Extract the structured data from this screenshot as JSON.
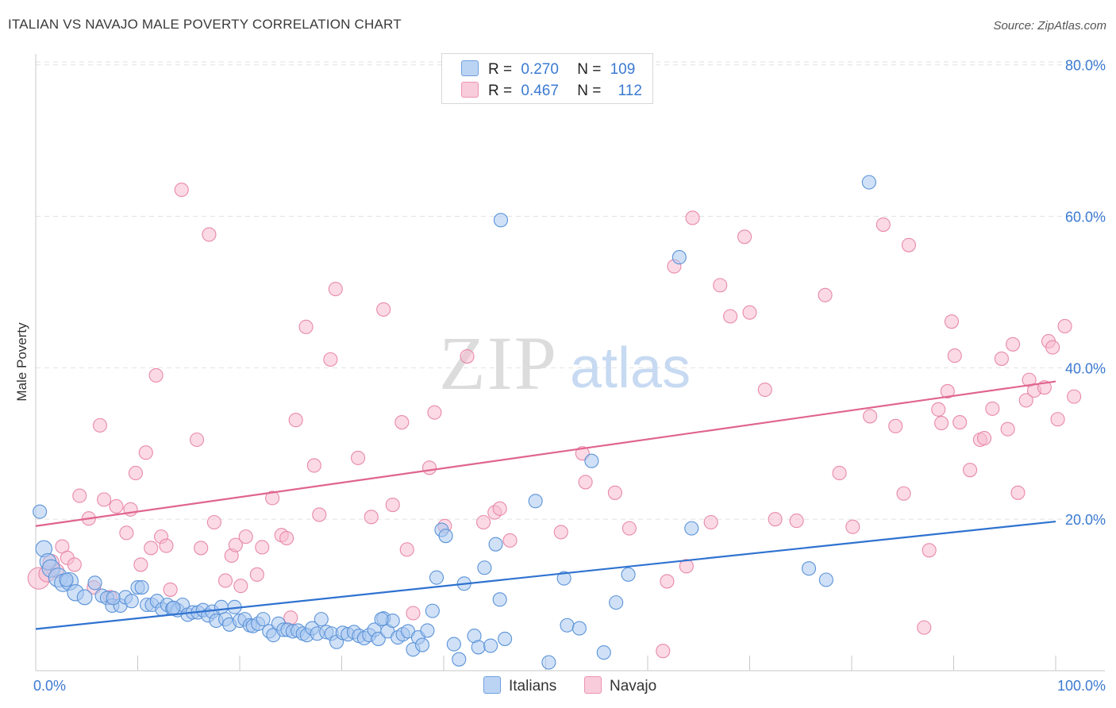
{
  "title": "ITALIAN VS NAVAJO MALE POVERTY CORRELATION CHART",
  "source": "Source: ZipAtlas.com",
  "watermark": {
    "zip": "ZIP",
    "atlas": "atlas"
  },
  "legend": {
    "rows": [
      {
        "r_label": "R =",
        "r_value": "0.270",
        "n_label": "N =",
        "n_value": "109"
      },
      {
        "r_label": "R =",
        "r_value": "0.467",
        "n_label": "N =",
        "n_value": "112"
      }
    ],
    "bottom": [
      "Italians",
      "Navajo"
    ]
  },
  "colors": {
    "italians_fill": "#a9c8f0",
    "italians_stroke": "#5b93d8",
    "italians_line": "#2f72d0",
    "navajo_fill": "#f7bcd0",
    "navajo_stroke": "#e889a9",
    "navajo_line": "#e0648f",
    "tick_text": "#3b7ad1"
  },
  "chart_data": {
    "type": "scatter",
    "title": "ITALIAN VS NAVAJO MALE POVERTY CORRELATION CHART",
    "xlabel": "",
    "ylabel": "Male Poverty",
    "xlim": [
      0,
      100
    ],
    "ylim": [
      0,
      85
    ],
    "x_tick_labels": [
      "0.0%",
      "100.0%"
    ],
    "y_ticks": [
      20,
      40,
      60,
      80
    ],
    "y_tick_labels": [
      "20.0%",
      "40.0%",
      "60.0%",
      "80.0%"
    ],
    "grid": "horizontal dashed",
    "legend_position": "top-center",
    "series": [
      {
        "name": "Italians",
        "r": 0.27,
        "n": 109,
        "trend": {
          "x": [
            0,
            100
          ],
          "y": [
            5.5,
            19.7
          ]
        },
        "points": [
          [
            0.4,
            21.0,
            1
          ],
          [
            0.8,
            16.1,
            1.2
          ],
          [
            1.2,
            14.4,
            1.2
          ],
          [
            1.5,
            13.5,
            1.3
          ],
          [
            2.2,
            12.3,
            1.4
          ],
          [
            2.7,
            11.6,
            1.3
          ],
          [
            3.3,
            11.8,
            1.3
          ],
          [
            3.9,
            10.3,
            1.2
          ],
          [
            4.8,
            9.7,
            1.1
          ],
          [
            5.8,
            11.6,
            1
          ],
          [
            6.5,
            9.9,
            1
          ],
          [
            7.0,
            9.6,
            1
          ],
          [
            7.5,
            8.6,
            1
          ],
          [
            8.3,
            8.6,
            1
          ],
          [
            8.8,
            9.7,
            1
          ],
          [
            9.4,
            9.2,
            1
          ],
          [
            10.0,
            11.0,
            1
          ],
          [
            10.4,
            11.0,
            1
          ],
          [
            10.9,
            8.7,
            1
          ],
          [
            11.4,
            8.7,
            1
          ],
          [
            11.9,
            9.2,
            1
          ],
          [
            12.4,
            8.1,
            1
          ],
          [
            12.9,
            8.7,
            1
          ],
          [
            13.4,
            8.2,
            1
          ],
          [
            13.9,
            8.0,
            1
          ],
          [
            14.4,
            8.7,
            1
          ],
          [
            14.9,
            7.4,
            1
          ],
          [
            15.4,
            7.7,
            1
          ],
          [
            15.9,
            7.7,
            1
          ],
          [
            16.4,
            8.0,
            1
          ],
          [
            16.9,
            7.3,
            1
          ],
          [
            17.3,
            7.8,
            1
          ],
          [
            17.7,
            6.6,
            1
          ],
          [
            18.2,
            8.4,
            1
          ],
          [
            18.6,
            6.8,
            1
          ],
          [
            19.0,
            6.1,
            1
          ],
          [
            19.5,
            8.4,
            1
          ],
          [
            20.0,
            6.6,
            1
          ],
          [
            20.5,
            6.8,
            1
          ],
          [
            21.0,
            6.0,
            1
          ],
          [
            21.3,
            5.9,
            1
          ],
          [
            21.8,
            6.2,
            1
          ],
          [
            22.3,
            6.8,
            1
          ],
          [
            22.9,
            5.2,
            1
          ],
          [
            23.3,
            4.7,
            1
          ],
          [
            23.8,
            6.2,
            1
          ],
          [
            24.3,
            5.4,
            1
          ],
          [
            24.7,
            5.4,
            1
          ],
          [
            25.2,
            5.2,
            1
          ],
          [
            25.7,
            5.3,
            1
          ],
          [
            26.2,
            4.9,
            1
          ],
          [
            26.6,
            4.7,
            1
          ],
          [
            27.1,
            5.6,
            1
          ],
          [
            27.6,
            4.9,
            1
          ],
          [
            28.0,
            6.8,
            1
          ],
          [
            28.5,
            5.1,
            1
          ],
          [
            29.0,
            4.9,
            1
          ],
          [
            29.5,
            3.8,
            1
          ],
          [
            30.1,
            5.0,
            1
          ],
          [
            30.6,
            4.8,
            1
          ],
          [
            31.2,
            5.1,
            1
          ],
          [
            31.7,
            4.6,
            1
          ],
          [
            32.2,
            4.3,
            1
          ],
          [
            32.7,
            4.7,
            1
          ],
          [
            33.2,
            5.4,
            1
          ],
          [
            33.6,
            4.2,
            1
          ],
          [
            34.1,
            6.9,
            1
          ],
          [
            34.5,
            5.2,
            1
          ],
          [
            35.0,
            6.6,
            1
          ],
          [
            35.5,
            4.4,
            1
          ],
          [
            36.0,
            4.8,
            1
          ],
          [
            36.5,
            5.2,
            1
          ],
          [
            37.0,
            2.8,
            1
          ],
          [
            37.5,
            4.4,
            1
          ],
          [
            37.9,
            3.4,
            1
          ],
          [
            38.4,
            5.3,
            1
          ],
          [
            38.9,
            7.9,
            1
          ],
          [
            39.3,
            12.3,
            1
          ],
          [
            39.8,
            18.6,
            1
          ],
          [
            40.2,
            17.8,
            1
          ],
          [
            41.0,
            3.5,
            1
          ],
          [
            41.5,
            1.5,
            1
          ],
          [
            42.0,
            11.5,
            1
          ],
          [
            43.0,
            4.6,
            1
          ],
          [
            43.4,
            3.1,
            1
          ],
          [
            44.0,
            13.6,
            1
          ],
          [
            44.6,
            3.3,
            1
          ],
          [
            45.1,
            16.7,
            1
          ],
          [
            45.5,
            9.4,
            1
          ],
          [
            46.0,
            4.2,
            1
          ],
          [
            49.0,
            22.4,
            1
          ],
          [
            50.3,
            1.1,
            1
          ],
          [
            51.8,
            12.2,
            1
          ],
          [
            52.1,
            6.0,
            1
          ],
          [
            53.3,
            5.6,
            1
          ],
          [
            54.5,
            27.7,
            1
          ],
          [
            55.7,
            2.4,
            1
          ],
          [
            56.9,
            9.0,
            1
          ],
          [
            58.1,
            12.7,
            1
          ],
          [
            63.1,
            54.6,
            1
          ],
          [
            64.3,
            18.8,
            1
          ],
          [
            75.8,
            13.5,
            1
          ],
          [
            77.5,
            12.0,
            1
          ],
          [
            81.7,
            64.5,
            1
          ],
          [
            45.6,
            59.5,
            1
          ],
          [
            13.5,
            8.3,
            1
          ],
          [
            33.9,
            6.8,
            1
          ],
          [
            3.0,
            12.0,
            1
          ],
          [
            7.6,
            9.6,
            1
          ]
        ]
      },
      {
        "name": "Navajo",
        "r": 0.467,
        "n": 112,
        "trend": {
          "x": [
            0,
            100
          ],
          "y": [
            19.1,
            38.2
          ]
        },
        "points": [
          [
            0.3,
            12.2,
            1.6
          ],
          [
            1.1,
            12.8,
            1.2
          ],
          [
            1.5,
            14.3,
            1.2
          ],
          [
            2.1,
            13.2,
            1
          ],
          [
            2.6,
            16.4,
            1
          ],
          [
            3.1,
            14.9,
            1
          ],
          [
            3.8,
            14.0,
            1
          ],
          [
            4.3,
            23.1,
            1
          ],
          [
            5.2,
            20.1,
            1
          ],
          [
            5.7,
            11.0,
            1
          ],
          [
            6.3,
            32.4,
            1
          ],
          [
            6.7,
            22.6,
            1
          ],
          [
            7.3,
            9.7,
            1
          ],
          [
            7.9,
            21.7,
            1
          ],
          [
            8.9,
            18.2,
            1
          ],
          [
            9.3,
            21.3,
            1
          ],
          [
            9.8,
            26.1,
            1
          ],
          [
            10.3,
            14.0,
            1
          ],
          [
            10.8,
            28.8,
            1
          ],
          [
            11.3,
            16.2,
            1
          ],
          [
            11.8,
            39.0,
            1
          ],
          [
            12.3,
            17.7,
            1
          ],
          [
            12.8,
            16.5,
            1
          ],
          [
            13.2,
            10.7,
            1
          ],
          [
            14.3,
            63.5,
            1
          ],
          [
            15.8,
            30.5,
            1
          ],
          [
            16.2,
            16.2,
            1
          ],
          [
            17.0,
            57.6,
            1
          ],
          [
            17.5,
            19.6,
            1
          ],
          [
            18.6,
            11.9,
            1
          ],
          [
            19.2,
            15.2,
            1
          ],
          [
            19.6,
            16.6,
            1
          ],
          [
            20.1,
            11.2,
            1
          ],
          [
            20.6,
            17.7,
            1
          ],
          [
            21.7,
            12.7,
            1
          ],
          [
            22.2,
            16.3,
            1
          ],
          [
            23.2,
            22.8,
            1
          ],
          [
            24.1,
            17.9,
            1
          ],
          [
            24.6,
            17.5,
            1
          ],
          [
            25.0,
            7.0,
            1
          ],
          [
            25.5,
            33.1,
            1
          ],
          [
            26.5,
            45.4,
            1
          ],
          [
            27.3,
            27.1,
            1
          ],
          [
            27.8,
            20.6,
            1
          ],
          [
            28.9,
            41.1,
            1
          ],
          [
            29.4,
            50.4,
            1
          ],
          [
            31.6,
            28.1,
            1
          ],
          [
            32.9,
            20.3,
            1
          ],
          [
            34.1,
            47.7,
            1
          ],
          [
            35.0,
            21.9,
            1
          ],
          [
            35.9,
            32.8,
            1
          ],
          [
            36.4,
            16.0,
            1
          ],
          [
            37.0,
            7.6,
            1
          ],
          [
            38.6,
            26.8,
            1
          ],
          [
            39.1,
            34.1,
            1
          ],
          [
            40.1,
            19.1,
            1
          ],
          [
            42.3,
            41.5,
            1
          ],
          [
            43.9,
            19.6,
            1
          ],
          [
            45.0,
            20.9,
            1
          ],
          [
            45.5,
            21.4,
            1
          ],
          [
            46.5,
            17.2,
            1
          ],
          [
            51.5,
            18.3,
            1
          ],
          [
            53.6,
            28.7,
            1
          ],
          [
            53.9,
            24.9,
            1
          ],
          [
            56.8,
            23.5,
            1
          ],
          [
            58.2,
            18.8,
            1
          ],
          [
            61.5,
            2.6,
            1
          ],
          [
            61.9,
            11.8,
            1
          ],
          [
            62.6,
            53.4,
            1
          ],
          [
            63.8,
            13.8,
            1
          ],
          [
            64.4,
            59.8,
            1
          ],
          [
            66.2,
            19.6,
            1
          ],
          [
            67.1,
            50.9,
            1
          ],
          [
            68.1,
            46.8,
            1
          ],
          [
            69.5,
            57.3,
            1
          ],
          [
            70.0,
            47.3,
            1
          ],
          [
            71.5,
            37.1,
            1
          ],
          [
            72.5,
            20.0,
            1
          ],
          [
            74.6,
            19.8,
            1
          ],
          [
            77.4,
            49.6,
            1
          ],
          [
            78.8,
            26.1,
            1
          ],
          [
            80.1,
            19.0,
            1
          ],
          [
            81.8,
            33.6,
            1
          ],
          [
            83.1,
            58.9,
            1
          ],
          [
            84.3,
            32.3,
            1
          ],
          [
            85.1,
            23.4,
            1
          ],
          [
            85.6,
            56.2,
            1
          ],
          [
            87.1,
            5.7,
            1
          ],
          [
            87.6,
            15.9,
            1
          ],
          [
            88.5,
            34.5,
            1
          ],
          [
            88.8,
            32.7,
            1
          ],
          [
            89.4,
            36.9,
            1
          ],
          [
            89.8,
            46.1,
            1
          ],
          [
            90.1,
            41.6,
            1
          ],
          [
            90.6,
            32.8,
            1
          ],
          [
            91.6,
            26.5,
            1
          ],
          [
            92.6,
            30.5,
            1
          ],
          [
            93.0,
            30.7,
            1
          ],
          [
            93.8,
            34.6,
            1
          ],
          [
            94.7,
            41.2,
            1
          ],
          [
            95.3,
            31.9,
            1
          ],
          [
            95.8,
            43.1,
            1
          ],
          [
            96.3,
            23.5,
            1
          ],
          [
            97.1,
            35.7,
            1
          ],
          [
            97.4,
            38.4,
            1
          ],
          [
            97.9,
            37.0,
            1
          ],
          [
            98.9,
            37.4,
            1
          ],
          [
            99.3,
            43.5,
            1
          ],
          [
            99.7,
            42.7,
            1
          ],
          [
            100.2,
            33.2,
            1
          ],
          [
            100.9,
            45.5,
            1
          ],
          [
            101.8,
            36.2,
            1
          ]
        ]
      }
    ]
  }
}
